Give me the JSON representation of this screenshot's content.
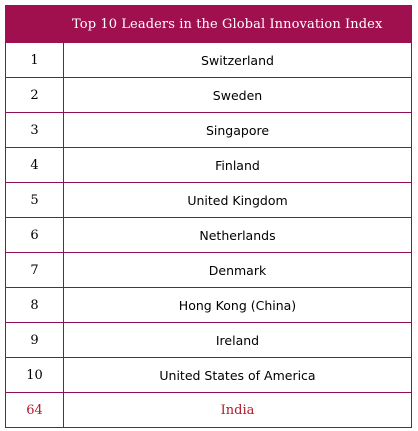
{
  "table": {
    "header": {
      "rank": "",
      "title": "Top 10 Leaders in the Global Innovation Index"
    },
    "rows": [
      {
        "rank": "1",
        "country": "Switzerland"
      },
      {
        "rank": "2",
        "country": "Sweden"
      },
      {
        "rank": "3",
        "country": "Singapore"
      },
      {
        "rank": "4",
        "country": "Finland"
      },
      {
        "rank": "5",
        "country": "United Kingdom"
      },
      {
        "rank": "6",
        "country": "Netherlands"
      },
      {
        "rank": "7",
        "country": "Denmark"
      },
      {
        "rank": "8",
        "country": "Hong Kong (China)"
      },
      {
        "rank": "9",
        "country": "Ireland"
      },
      {
        "rank": "10",
        "country": "United States of America"
      }
    ],
    "highlight_row": {
      "rank": "64",
      "country": "India"
    }
  },
  "colors": {
    "header_background": "#a0104f",
    "border": "#8f0f5a",
    "highlight_text": "#b01a2c"
  }
}
